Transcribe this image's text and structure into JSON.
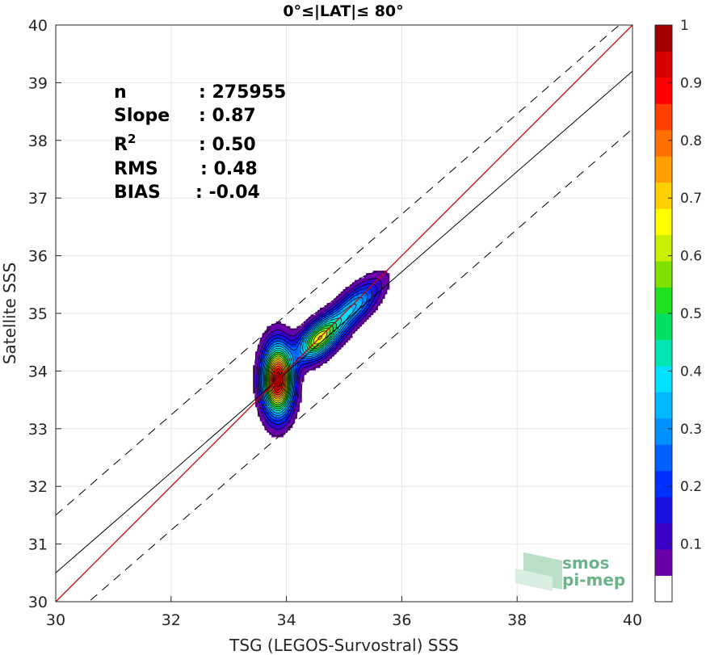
{
  "chart_data": {
    "type": "heatmap",
    "title": "0°≤|LAT|≤ 80°",
    "xlabel": "TSG (LEGOS-Survostral) SSS",
    "ylabel": "Satellite SSS",
    "xlim": [
      30,
      40
    ],
    "ylim": [
      30,
      40
    ],
    "xticks": [
      "30",
      "32",
      "34",
      "36",
      "38",
      "40"
    ],
    "yticks": [
      "30",
      "31",
      "32",
      "33",
      "34",
      "35",
      "36",
      "37",
      "38",
      "39",
      "40"
    ],
    "grid": true,
    "stats": [
      {
        "label": "n",
        "value": ": 275955"
      },
      {
        "label": "Slope",
        "value": ": 0.87"
      },
      {
        "label": "R",
        "sup": "2",
        "value": ": 0.50"
      },
      {
        "label": "RMS",
        "value": ": 0.48"
      },
      {
        "label": "BIAS",
        "value": ": -0.04"
      }
    ],
    "lines": {
      "identity": {
        "slope": 1,
        "intercept": 0,
        "color": "#cc0000"
      },
      "regression": {
        "slope": 0.87,
        "intercept_at_30": 30.5,
        "color": "#000000"
      },
      "bounds_offset": 1.0
    },
    "density_peaks": [
      {
        "x": 33.85,
        "y": 33.85,
        "level": 1.0
      },
      {
        "x": 34.55,
        "y": 34.55,
        "level": 0.6
      },
      {
        "x": 35.15,
        "y": 35.1,
        "level": 0.35
      }
    ],
    "levels": [
      0.05,
      0.1,
      0.15,
      0.2,
      0.25,
      0.3,
      0.35,
      0.4,
      0.45,
      0.5,
      0.55,
      0.6,
      0.65,
      0.7,
      0.75,
      0.8,
      0.85,
      0.9,
      0.95
    ],
    "colorbar": {
      "range": [
        0,
        1
      ],
      "ticks": [
        "0.1",
        "0.2",
        "0.3",
        "0.4",
        "0.5",
        "0.6",
        "0.7",
        "0.8",
        "0.9",
        "1"
      ],
      "colors": [
        "#ffffff",
        "#6a00a8",
        "#3a00c8",
        "#1a10e0",
        "#0030ff",
        "#0060ff",
        "#0090ff",
        "#00b8ff",
        "#00e0ff",
        "#00e6b0",
        "#00e060",
        "#20e020",
        "#80e000",
        "#c8f000",
        "#ffff00",
        "#ffd000",
        "#ffa000",
        "#ff7000",
        "#ff4000",
        "#ff0000",
        "#d80000",
        "#a00000"
      ]
    }
  },
  "watermark": {
    "line1": "smos",
    "line2": "pi-mep"
  }
}
